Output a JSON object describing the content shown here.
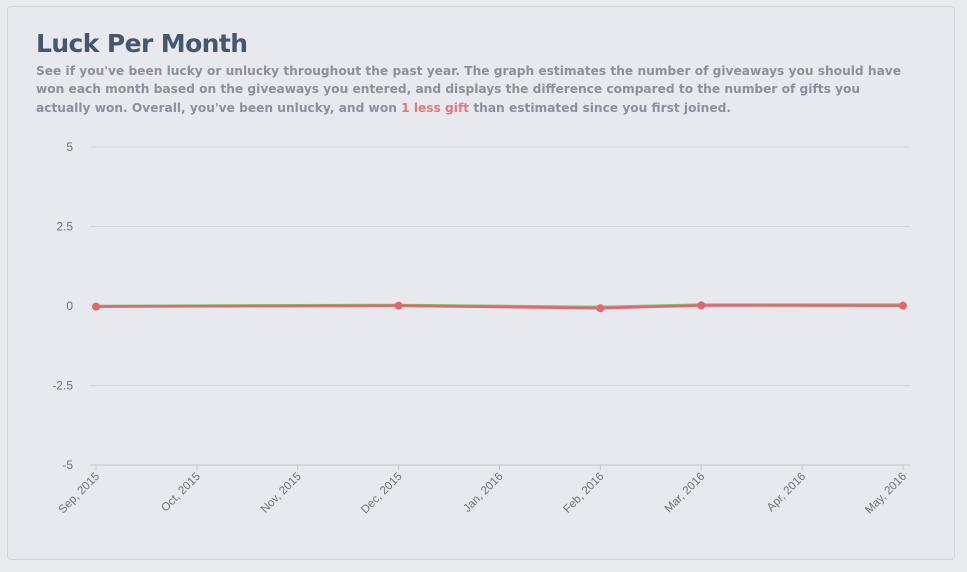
{
  "header": {
    "title": "Luck Per Month",
    "desc_pre": "See if you've been lucky or unlucky throughout the past year. The graph estimates the number of giveaways you should have won each month based on the giveaways you entered, and displays the difference compared to the number of gifts you actually won. Overall, you've been unlucky, and won ",
    "desc_highlight": "1 less gift",
    "desc_post": " than estimated since you first joined."
  },
  "colors": {
    "series_green": "#7dc26b",
    "series_red": "#e0666f",
    "grid": "#d3d6de",
    "axis": "#bcc5d6"
  },
  "chart_data": {
    "type": "line",
    "categories": [
      "Sep, 2015",
      "Oct, 2015",
      "Nov, 2015",
      "Dec, 2015",
      "Jan, 2016",
      "Feb, 2016",
      "Mar, 2016",
      "Apr, 2016",
      "May, 2016"
    ],
    "ylim": [
      -5,
      5
    ],
    "yticks": [
      5,
      2.5,
      0,
      -2.5,
      -5
    ],
    "grid": true,
    "legend": "none",
    "series": [
      {
        "role": "estimated",
        "x": [
          "Sep, 2015",
          "Dec, 2015",
          "Feb, 2016",
          "Mar, 2016",
          "May, 2016"
        ],
        "values": [
          0.0,
          0.03,
          -0.03,
          0.04,
          0.04
        ]
      },
      {
        "role": "actual",
        "x": [
          "Sep, 2015",
          "Dec, 2015",
          "Feb, 2016",
          "Mar, 2016",
          "May, 2016"
        ],
        "values": [
          -0.02,
          0.01,
          -0.07,
          0.02,
          0.01
        ]
      }
    ]
  }
}
